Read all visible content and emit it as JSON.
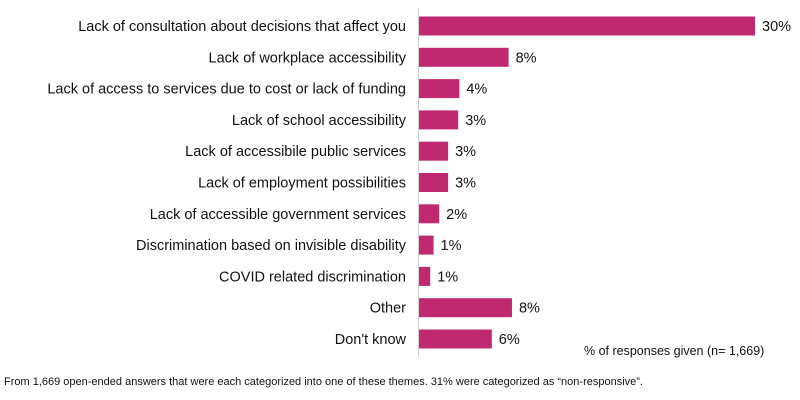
{
  "chart_data": {
    "type": "bar",
    "orientation": "horizontal",
    "categories": [
      "Lack of consultation about decisions that affect you",
      "Lack of workplace accessibility",
      "Lack of access to services due to cost or lack of funding",
      "Lack of school accessibility",
      "Lack of accessibile public services",
      "Lack of employment possibilities",
      "Lack of accessible government services ",
      "Discrimination based on invisible disability",
      "COVID related discrimination",
      "Other",
      "Don't know"
    ],
    "values": [
      30,
      8,
      4,
      3,
      3,
      3,
      2,
      1,
      1,
      8,
      6
    ],
    "value_labels": [
      "30%",
      "8%",
      "4%",
      "3%",
      "3%",
      "3%",
      "2%",
      "1%",
      "1%",
      "8%",
      "6%"
    ],
    "bar_heights": [
      30,
      8,
      3.6,
      3.5,
      2.6,
      2.6,
      1.8,
      1.3,
      1.0,
      8.3,
      6.5
    ],
    "xlim": [
      0,
      30
    ],
    "grid": false,
    "bar_color": "#c0286f",
    "axis_color": "#d0d0d0"
  },
  "legend_note": "% of responses given (n= 1,669)",
  "footnote": "From 1,669 open-ended answers that were each categorized into one of these themes. 31% were categorized as “non-responsive”."
}
